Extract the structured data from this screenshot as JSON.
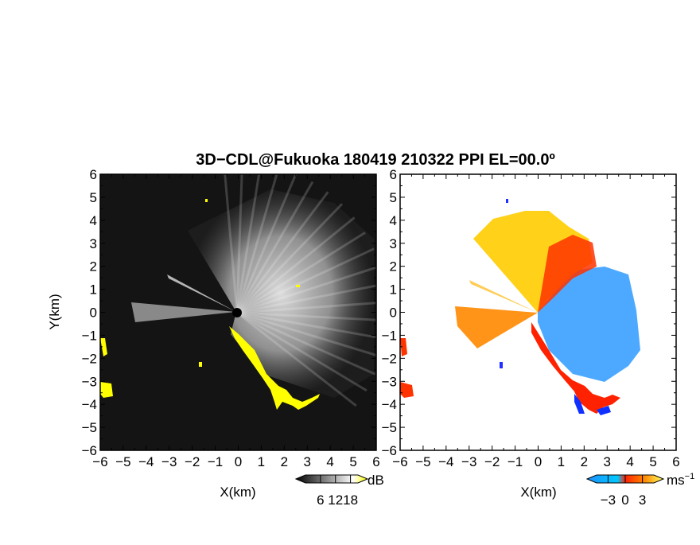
{
  "chart_data": [
    {
      "type": "heatmap",
      "title": "3D−CDL@Fukuoka 180419 210322 PPI EL=00.0º",
      "xlabel": "X(km)",
      "ylabel": "Y(km)",
      "xlim": [
        -6,
        6
      ],
      "ylim": [
        -6,
        6
      ],
      "xticks": [
        "−6",
        "−5",
        "−4",
        "−3",
        "−2",
        "−1",
        "0",
        "1",
        "2",
        "3",
        "4",
        "5",
        "6"
      ],
      "yticks": [
        "6",
        "5",
        "4",
        "3",
        "2",
        "1",
        "0",
        "−1",
        "−2",
        "−3",
        "−4",
        "−5",
        "−6"
      ],
      "colorbar": {
        "unit": "dB",
        "tick_labels": [
          "6",
          "12",
          "18"
        ],
        "ticks": [
          6,
          12,
          18
        ],
        "colors": [
          "#000000",
          "#ffffff",
          "#ffff00"
        ]
      },
      "background": "#111111",
      "highlight_color": "#ffff00"
    },
    {
      "type": "heatmap",
      "xlabel": "X(km)",
      "xlim": [
        -6,
        6
      ],
      "ylim": [
        -6,
        6
      ],
      "xticks": [
        "−6",
        "−5",
        "−4",
        "−3",
        "−2",
        "−1",
        "0",
        "1",
        "2",
        "3",
        "4",
        "5",
        "6"
      ],
      "colorbar": {
        "unit": "ms",
        "unit_sup": "−1",
        "tick_labels": [
          "−3",
          "0",
          "3"
        ],
        "ticks": [
          -3,
          0,
          3
        ],
        "colors": [
          "#1e90ff",
          "#00b4ff",
          "#ff2200",
          "#ff8800",
          "#ffff66"
        ]
      },
      "background": "#ffffff"
    }
  ]
}
